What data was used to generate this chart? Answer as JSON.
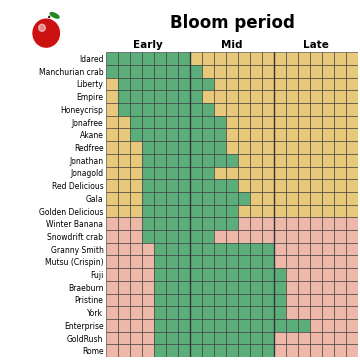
{
  "title": "Bloom period",
  "col_labels": [
    "Early",
    "Mid",
    "Late"
  ],
  "varieties": [
    "Idared",
    "Manchurian crab",
    "Liberty",
    "Empire",
    "Honeycrisp",
    "Jonafree",
    "Akane",
    "Redfree",
    "Jonathan",
    "Jonagold",
    "Red Delicious",
    "Gala",
    "Golden Delicious",
    "Winter Banana",
    "Snowdrift crab",
    "Granny Smith",
    "Mutsu (Crispin)",
    "Fuji",
    "Braeburn",
    "Pristine",
    "York",
    "Enterprise",
    "GoldRush",
    "Rome"
  ],
  "bloom_data": [
    [
      0,
      6
    ],
    [
      0,
      7
    ],
    [
      1,
      8
    ],
    [
      1,
      7
    ],
    [
      1,
      8
    ],
    [
      2,
      9
    ],
    [
      2,
      9
    ],
    [
      3,
      9
    ],
    [
      3,
      10
    ],
    [
      3,
      8
    ],
    [
      3,
      10
    ],
    [
      3,
      11
    ],
    [
      3,
      10
    ],
    [
      3,
      10
    ],
    [
      3,
      8
    ],
    [
      4,
      13
    ],
    [
      4,
      13
    ],
    [
      4,
      14
    ],
    [
      4,
      14
    ],
    [
      4,
      14
    ],
    [
      4,
      14
    ],
    [
      4,
      16
    ],
    [
      4,
      13
    ],
    [
      4,
      13
    ]
  ],
  "pink_from_row": 13,
  "n_cols": 21,
  "section_size": 7,
  "green": "#5BAD7A",
  "yellow": "#E8C87A",
  "pink": "#EEB8A8",
  "grid_color": "#333333",
  "bg_color": "#FFFFFF",
  "title_fontsize": 12,
  "label_fontsize": 7.5,
  "variety_fontsize": 5.5,
  "figsize": [
    3.6,
    3.6
  ],
  "dpi": 100
}
